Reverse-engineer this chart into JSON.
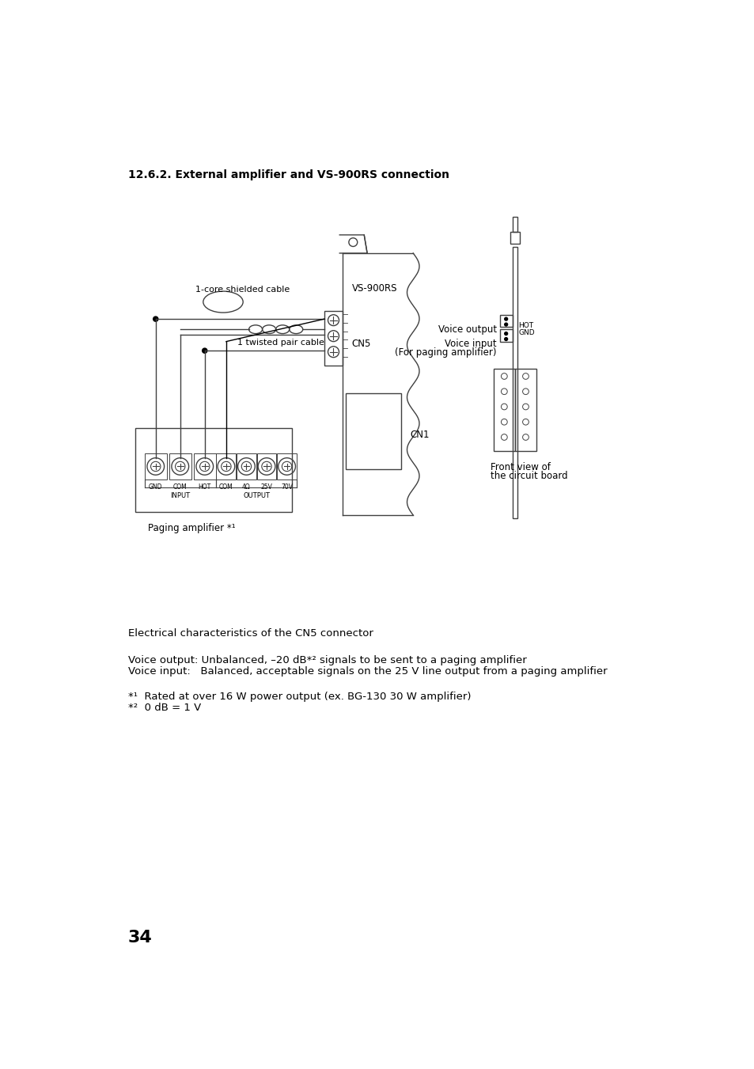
{
  "title": "12.6.2. External amplifier and VS-900RS connection",
  "page_number": "34",
  "bg_color": "#ffffff",
  "text_color": "#000000",
  "line_color": "#404040",
  "diagram_labels": {
    "vs900rs": "VS-900RS",
    "cn5": "CN5",
    "cn1": "CN1",
    "cable1": "1-core shielded cable",
    "cable2": "1 twisted pair cable",
    "paging_amp": "Paging amplifier *¹",
    "voice_output": "Voice output",
    "voice_input": "Voice input",
    "for_paging": "(For paging amplifier)",
    "hot": "HOT",
    "gnd_label": "GND",
    "front_view": "Front view of",
    "circuit_board": "the circuit board",
    "input_label": "INPUT",
    "output_label": "OUTPUT",
    "gnd": "GND",
    "com": "COM",
    "hot2": "HOT",
    "com2": "COM",
    "four_ohm": "4Ω",
    "twenty_five": "25V",
    "seventy": "70V"
  },
  "text_blocks": {
    "electrical": "Electrical characteristics of the CN5 connector",
    "voice_out_desc": "Voice output: Unbalanced, –20 dB*² signals to be sent to a paging amplifier",
    "voice_in_desc": "Voice input:   Balanced, acceptable signals on the 25 V line output from a paging amplifier",
    "footnote1": "*¹  Rated at over 16 W power output (ex. BG-130 30 W amplifier)",
    "footnote2": "*²  0 dB = 1 V"
  }
}
